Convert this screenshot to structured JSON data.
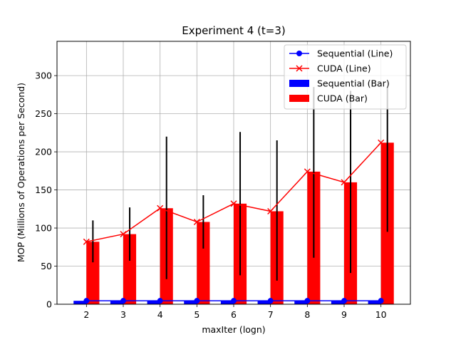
{
  "chart_data": {
    "type": "bar",
    "title": "Experiment 4 (t=3)",
    "xlabel": "maxIter (logn)",
    "ylabel": "MOP (Millions of Operations per Second)",
    "categories": [
      2,
      3,
      4,
      5,
      6,
      7,
      8,
      9,
      10
    ],
    "xlim": [
      1.2,
      10.8
    ],
    "ylim": [
      0,
      345
    ],
    "yticks": [
      0,
      50,
      100,
      150,
      200,
      250,
      300
    ],
    "grid": true,
    "legend_position": "top-right",
    "series": [
      {
        "name": "Sequential (Line)",
        "kind": "line",
        "marker": "circle",
        "color": "#0000ff",
        "values": [
          4.5,
          4.5,
          4.5,
          4.5,
          4.5,
          4.5,
          4.5,
          4.5,
          4.5
        ]
      },
      {
        "name": "CUDA (Line)",
        "kind": "line",
        "marker": "x",
        "color": "#ff0000",
        "values": [
          82,
          92,
          126,
          108,
          132,
          122,
          174,
          160,
          212
        ]
      },
      {
        "name": "Sequential (Bar)",
        "kind": "bar",
        "color": "#0000ff",
        "values": [
          4.5,
          4.5,
          4.5,
          4.5,
          4.5,
          4.5,
          4.5,
          4.5,
          4.5
        ]
      },
      {
        "name": "CUDA (Bar)",
        "kind": "bar",
        "color": "#ff0000",
        "values": [
          82,
          92,
          126,
          108,
          132,
          122,
          174,
          160,
          212
        ],
        "error_low": [
          55,
          57,
          33,
          73,
          38,
          31,
          61,
          41,
          95
        ],
        "error_high": [
          110,
          127,
          220,
          143,
          226,
          215,
          285,
          280,
          285
        ]
      }
    ]
  }
}
